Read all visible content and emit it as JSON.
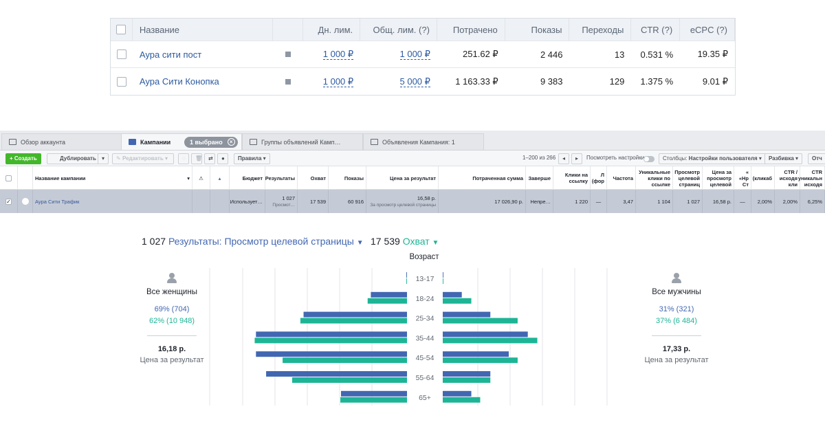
{
  "direct_table": {
    "headers": {
      "name": "Название",
      "daily_limit": "Дн. лим.",
      "total_limit": "Общ. лим. (?)",
      "spent": "Потрачено",
      "impressions": "Показы",
      "clicks": "Переходы",
      "ctr": "CTR (?)",
      "ecpc": "eCPC (?)"
    },
    "rows": [
      {
        "name": "Аура сити пост",
        "daily_limit": "1 000 ₽",
        "total_limit": "1 000 ₽",
        "spent": "251.62 ₽",
        "impressions": "2 446",
        "clicks": "13",
        "ctr": "0.531 %",
        "ecpc": "19.35 ₽"
      },
      {
        "name": "Аура Сити Конопка",
        "daily_limit": "1 000 ₽",
        "total_limit": "5 000 ₽",
        "spent": "1 163.33 ₽",
        "impressions": "9 383",
        "clicks": "129",
        "ctr": "1.375 %",
        "ecpc": "9.01 ₽"
      }
    ]
  },
  "ads_manager": {
    "tabs": {
      "overview": "Обзор аккаунта",
      "campaigns": "Кампании",
      "selected": "1 выбрано",
      "adsets": "Группы объявлений Камп…",
      "ads": "Объявления Кампания: 1"
    },
    "toolbar": {
      "create": "+ Создать",
      "duplicate": "Дублировать",
      "edit": "Редактировать",
      "rules": "Правила",
      "pagination": "1–200 из 266",
      "view_settings": "Посмотреть настройки",
      "columns_label": "Столбцы:",
      "columns_value": "Настройки пользователя",
      "breakdown": "Разбивка",
      "reports": "Отч"
    },
    "columns": {
      "name": "Название кампании",
      "budget": "Бюджет",
      "results": "Результаты",
      "reach": "Охват",
      "impressions": "Показы",
      "cost_per_result": "Цена за результат",
      "amount_spent": "Потраченная сумма",
      "ends": "Заверше",
      "link_clicks": "Клики на ссылку",
      "col_l": "Л (фор",
      "frequency": "Частота",
      "unique_link_clicks": "Уникальные клики по ссылке",
      "landing_views": "Просмотр целевой страниц",
      "cost_per_landing": "Цена за просмотр целевой",
      "col_npm": "« «Нр Ст",
      "click_ctr": "(кликаб",
      "ctr_outbound": "CTR / исходя кли",
      "ctr_unique": "CTR уникальн исходя"
    },
    "row": {
      "name": "Аура Сити Трафик",
      "budget": "Использует…",
      "results": "1 027",
      "results_sub": "Просмот…",
      "reach": "17 539",
      "impressions": "60 916",
      "cost_per_result": "16,58 р.",
      "cost_sub": "За просмотр целевой страницы",
      "amount_spent": "17 026,90 р.",
      "ends": "Непре…",
      "link_clicks": "1 220",
      "col_l": "—",
      "frequency": "3,47",
      "unique_link_clicks": "1 104",
      "landing_views": "1 027",
      "cost_per_landing": "16,58 р.",
      "col_npm": "—",
      "click_ctr": "2,00%",
      "ctr_outbound": "2,00%",
      "ctr_unique": "6,25%"
    }
  },
  "demographics": {
    "results_value": "1 027",
    "results_label": "Результаты: Просмотр целевой страницы",
    "reach_value": "17 539",
    "reach_label": "Охват",
    "age_title": "Возраст",
    "women": {
      "title": "Все женщины",
      "results": "69% (704)",
      "reach": "62% (10 948)",
      "price": "16,18 р.",
      "price_caption": "Цена за результат"
    },
    "men": {
      "title": "Все мужчины",
      "results": "31% (321)",
      "reach": "37% (6 484)",
      "price": "17,33 р.",
      "price_caption": "Цена за результат"
    },
    "colors": {
      "results": "#4267b2",
      "reach": "#1db596"
    }
  },
  "chart_data": {
    "type": "bar",
    "categories": [
      "13-17",
      "18-24",
      "25-34",
      "35-44",
      "45-54",
      "55-64",
      "65+"
    ],
    "series": [
      {
        "name": "Все женщины",
        "results": [
          1,
          57,
          163,
          238,
          238,
          222,
          104
        ],
        "reach": [
          1,
          62,
          168,
          240,
          196,
          181,
          105
        ]
      },
      {
        "name": "Все мужчины",
        "results": [
          1,
          30,
          75,
          134,
          104,
          75,
          45
        ],
        "reach": [
          1,
          45,
          118,
          149,
          118,
          75,
          59
        ]
      }
    ],
    "xlim": [
      0,
      260
    ]
  }
}
